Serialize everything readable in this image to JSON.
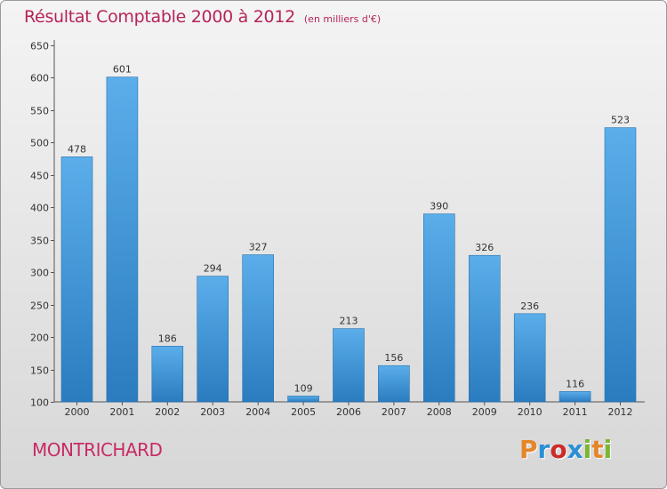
{
  "header": {
    "title": "Résultat Comptable 2000 à 2012",
    "unit": "(en milliers d'€)"
  },
  "footer": {
    "town": "MONTRICHARD",
    "logo": "Proxiti",
    "logo_colors": [
      "#e5862b",
      "#2c8fd6",
      "#cc2b2b",
      "#2c8fd6",
      "#7ab632",
      "#e5862b",
      "#7ab632"
    ]
  },
  "colors": {
    "title": "#b5245a",
    "town": "#c72b66",
    "bar_top": "#5baeea",
    "bar_bottom": "#2a7cbf"
  },
  "chart_data": {
    "type": "bar",
    "title": "Résultat Comptable 2000 à 2012",
    "subtitle": "(en milliers d'€)",
    "categories": [
      "2000",
      "2001",
      "2002",
      "2003",
      "2004",
      "2005",
      "2006",
      "2007",
      "2008",
      "2009",
      "2010",
      "2011",
      "2012"
    ],
    "values": [
      478,
      601,
      186,
      294,
      327,
      109,
      213,
      156,
      390,
      326,
      236,
      116,
      523
    ],
    "ylim": [
      100,
      650
    ],
    "yticks": [
      100,
      150,
      200,
      250,
      300,
      350,
      400,
      450,
      500,
      550,
      600,
      650
    ],
    "grid": false,
    "data_labels": true
  }
}
